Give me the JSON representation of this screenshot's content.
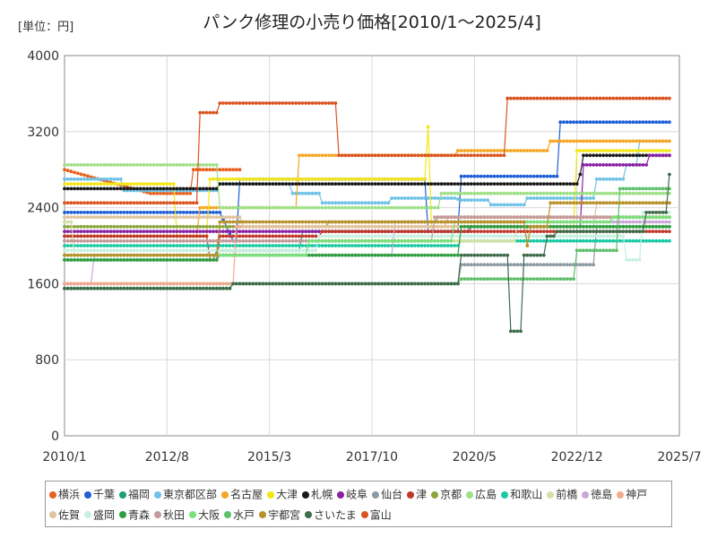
{
  "chart_data": {
    "type": "line",
    "title": "パンク修理の小売り価格[2010/1～2025/4]",
    "unit_label": "[単位：円]",
    "xlim": [
      "2010/1",
      "2025/7"
    ],
    "x_ticks": [
      "2010/1",
      "2012/8",
      "2015/3",
      "2017/10",
      "2020/5",
      "2022/12",
      "2025/7"
    ],
    "ylim": [
      0,
      4000
    ],
    "y_ticks": [
      0,
      800,
      1600,
      2400,
      3200,
      4000
    ],
    "grid": true,
    "legend_position": "bottom",
    "series": [
      {
        "name": "横浜",
        "color": "#e8601c",
        "points": [
          [
            "2010/1",
            2800
          ],
          [
            "2012/3",
            2550
          ],
          [
            "2013/3",
            2550
          ],
          [
            "2013/4",
            2800
          ],
          [
            "2014/6",
            2800
          ]
        ]
      },
      {
        "name": "千葉",
        "color": "#1f5fd6",
        "points": [
          [
            "2010/1",
            2350
          ],
          [
            "2013/11",
            2350
          ],
          [
            "2013/12",
            2350
          ],
          [
            "2014/4",
            2050
          ],
          [
            "2014/5",
            2050
          ],
          [
            "2014/6",
            2700
          ],
          [
            "2019/2",
            2700
          ],
          [
            "2019/3",
            2150
          ],
          [
            "2019/12",
            2150
          ],
          [
            "2020/1",
            2730
          ],
          [
            "2022/6",
            2730
          ],
          [
            "2022/7",
            3300
          ],
          [
            "2025/4",
            3300
          ]
        ]
      },
      {
        "name": "福岡",
        "color": "#1a9e77",
        "points": [
          [
            "2010/1",
            1850
          ],
          [
            "2013/10",
            1850
          ],
          [
            "2013/11",
            1950
          ],
          [
            "2015/12",
            1950
          ],
          [
            "2016/1",
            2150
          ],
          [
            "2020/3",
            2150
          ],
          [
            "2020/4",
            2200
          ],
          [
            "2025/4",
            2200
          ]
        ]
      },
      {
        "name": "東京都区部",
        "color": "#6ec1e6",
        "points": [
          [
            "2010/1",
            2700
          ],
          [
            "2011/6",
            2700
          ],
          [
            "2011/7",
            2580
          ],
          [
            "2013/11",
            2580
          ],
          [
            "2013/12",
            2650
          ],
          [
            "2015/9",
            2650
          ],
          [
            "2015/10",
            2550
          ],
          [
            "2016/6",
            2550
          ],
          [
            "2016/7",
            2450
          ],
          [
            "2018/3",
            2450
          ],
          [
            "2018/4",
            2500
          ],
          [
            "2019/11",
            2500
          ],
          [
            "2020/1",
            2480
          ],
          [
            "2020/9",
            2480
          ],
          [
            "2020/10",
            2430
          ],
          [
            "2021/8",
            2430
          ],
          [
            "2021/9",
            2500
          ],
          [
            "2023/5",
            2500
          ],
          [
            "2023/6",
            2700
          ],
          [
            "2024/2",
            2700
          ],
          [
            "2024/3",
            2850
          ],
          [
            "2024/6",
            2850
          ],
          [
            "2024/7",
            3100
          ],
          [
            "2025/4",
            3100
          ]
        ]
      },
      {
        "name": "名古屋",
        "color": "#f5a623",
        "points": [
          [
            "2010/1",
            2100
          ],
          [
            "2013/5",
            2100
          ],
          [
            "2013/6",
            2400
          ],
          [
            "2015/11",
            2400
          ],
          [
            "2015/12",
            2950
          ],
          [
            "2019/11",
            2950
          ],
          [
            "2019/12",
            3000
          ],
          [
            "2022/3",
            3000
          ],
          [
            "2022/4",
            3100
          ],
          [
            "2025/4",
            3100
          ]
        ]
      },
      {
        "name": "大津",
        "color": "#f3e616",
        "points": [
          [
            "2010/1",
            2650
          ],
          [
            "2012/10",
            2650
          ],
          [
            "2012/11",
            2100
          ],
          [
            "2013/8",
            2100
          ],
          [
            "2013/9",
            2700
          ],
          [
            "2019/2",
            2700
          ],
          [
            "2019/3",
            3250
          ],
          [
            "2019/4",
            2200
          ],
          [
            "2022/11",
            2200
          ],
          [
            "2022/12",
            3000
          ],
          [
            "2025/4",
            3000
          ]
        ]
      },
      {
        "name": "札幌",
        "color": "#1a1a1a",
        "points": [
          [
            "2010/1",
            2600
          ],
          [
            "2012/2",
            2600
          ],
          [
            "2012/3",
            2600
          ],
          [
            "2013/11",
            2600
          ],
          [
            "2013/12",
            2650
          ],
          [
            "2022/12",
            2650
          ],
          [
            "2023/1",
            2750
          ],
          [
            "2023/2",
            2950
          ],
          [
            "2025/4",
            2950
          ]
        ]
      },
      {
        "name": "岐阜",
        "color": "#8b1fa5",
        "points": [
          [
            "2010/1",
            2150
          ],
          [
            "2016/3",
            2150
          ],
          [
            "2016/4",
            2150
          ],
          [
            "2020/3",
            2150
          ],
          [
            "2020/4",
            2200
          ],
          [
            "2023/1",
            2200
          ],
          [
            "2023/2",
            2850
          ],
          [
            "2024/9",
            2850
          ],
          [
            "2024/10",
            2950
          ],
          [
            "2025/4",
            2950
          ]
        ]
      },
      {
        "name": "仙台",
        "color": "#8c9aa3",
        "points": [
          [
            "2010/1",
            1600
          ],
          [
            "2014/3",
            1600
          ],
          [
            "2014/4",
            1600
          ],
          [
            "2019/12",
            1600
          ],
          [
            "2020/1",
            1800
          ],
          [
            "2023/5",
            1800
          ],
          [
            "2023/6",
            2200
          ],
          [
            "2025/4",
            2200
          ]
        ]
      },
      {
        "name": "津",
        "color": "#c0392b",
        "points": [
          [
            "2010/1",
            2100
          ],
          [
            "2013/8",
            2100
          ],
          [
            "2013/9",
            1850
          ],
          [
            "2013/11",
            1850
          ],
          [
            "2013/12",
            2100
          ],
          [
            "2016/6",
            2100
          ],
          [
            "2016/7",
            2150
          ],
          [
            "2025/4",
            2150
          ]
        ]
      },
      {
        "name": "京都",
        "color": "#8aa63d",
        "points": [
          [
            "2010/1",
            2200
          ],
          [
            "2016/8",
            2200
          ],
          [
            "2016/9",
            2250
          ],
          [
            "2019/5",
            2250
          ],
          [
            "2019/6",
            2300
          ],
          [
            "2025/4",
            2300
          ]
        ]
      },
      {
        "name": "広島",
        "color": "#9ee086",
        "points": [
          [
            "2010/1",
            2850
          ],
          [
            "2013/11",
            2850
          ],
          [
            "2013/12",
            2400
          ],
          [
            "2019/6",
            2400
          ],
          [
            "2019/7",
            2550
          ],
          [
            "2025/4",
            2550
          ]
        ]
      },
      {
        "name": "和歌山",
        "color": "#18c9a2",
        "points": [
          [
            "2010/1",
            2000
          ],
          [
            "2014/6",
            2000
          ],
          [
            "2014/7",
            2000
          ],
          [
            "2019/12",
            2000
          ],
          [
            "2020/1",
            2050
          ],
          [
            "2025/4",
            2050
          ]
        ]
      },
      {
        "name": "前橋",
        "color": "#d4e0a6",
        "points": [
          [
            "2010/1",
            2250
          ],
          [
            "2010/3",
            2250
          ],
          [
            "2010/4",
            1900
          ],
          [
            "2016/2",
            1900
          ],
          [
            "2016/3",
            2050
          ],
          [
            "2021/5",
            2050
          ],
          [
            "2021/6",
            2200
          ],
          [
            "2025/4",
            2200
          ]
        ]
      },
      {
        "name": "徳島",
        "color": "#c9a7d6",
        "points": [
          [
            "2010/1",
            1600
          ],
          [
            "2010/9",
            1600
          ],
          [
            "2010/10",
            1900
          ],
          [
            "2018/4",
            1900
          ],
          [
            "2018/5",
            2250
          ],
          [
            "2025/4",
            2250
          ]
        ]
      },
      {
        "name": "神戸",
        "color": "#f2a98c",
        "points": [
          [
            "2010/1",
            1600
          ],
          [
            "2012/12",
            1600
          ],
          [
            "2013/1",
            1600
          ],
          [
            "2014/4",
            1600
          ],
          [
            "2014/5",
            2200
          ],
          [
            "2019/8",
            2200
          ],
          [
            "2019/9",
            2300
          ],
          [
            "2025/4",
            2300
          ]
        ]
      },
      {
        "name": "佐賀",
        "color": "#e0c49e",
        "points": [
          [
            "2010/1",
            2300
          ],
          [
            "2014/6",
            2300
          ],
          [
            "2014/7",
            2200
          ],
          [
            "2023/5",
            2200
          ],
          [
            "2023/6",
            2450
          ],
          [
            "2025/4",
            2450
          ]
        ]
      },
      {
        "name": "盛岡",
        "color": "#c8f0e0",
        "points": [
          [
            "2010/1",
            1950
          ],
          [
            "2016/5",
            1950
          ],
          [
            "2016/6",
            2100
          ],
          [
            "2024/2",
            2100
          ],
          [
            "2024/3",
            1850
          ],
          [
            "2024/7",
            1850
          ],
          [
            "2024/8",
            2350
          ],
          [
            "2025/4",
            2350
          ]
        ]
      },
      {
        "name": "青森",
        "color": "#2e9e3f",
        "points": [
          [
            "2010/1",
            1850
          ],
          [
            "2013/11",
            1850
          ],
          [
            "2013/12",
            1900
          ],
          [
            "2019/12",
            1900
          ],
          [
            "2020/1",
            2200
          ],
          [
            "2025/4",
            2200
          ]
        ]
      },
      {
        "name": "秋田",
        "color": "#c59a9a",
        "points": [
          [
            "2010/1",
            2050
          ],
          [
            "2013/11",
            2050
          ],
          [
            "2013/12",
            2050
          ],
          [
            "2019/4",
            2050
          ],
          [
            "2019/5",
            2300
          ],
          [
            "2025/4",
            2300
          ]
        ]
      },
      {
        "name": "大阪",
        "color": "#7ae07a",
        "points": [
          [
            "2010/1",
            1900
          ],
          [
            "2016/2",
            1900
          ],
          [
            "2016/3",
            2050
          ],
          [
            "2019/10",
            2050
          ],
          [
            "2019/11",
            2250
          ],
          [
            "2023/10",
            2250
          ],
          [
            "2023/11",
            2300
          ],
          [
            "2025/4",
            2300
          ]
        ]
      },
      {
        "name": "水戸",
        "color": "#5cbf6a",
        "points": [
          [
            "2010/1",
            1550
          ],
          [
            "2014/3",
            1550
          ],
          [
            "2014/4",
            1600
          ],
          [
            "2019/12",
            1600
          ],
          [
            "2020/1",
            1650
          ],
          [
            "2022/11",
            1650
          ],
          [
            "2022/12",
            1950
          ],
          [
            "2023/12",
            1950
          ],
          [
            "2024/1",
            2600
          ],
          [
            "2025/4",
            2600
          ]
        ]
      },
      {
        "name": "宇都宮",
        "color": "#b8912a",
        "points": [
          [
            "2010/1",
            1900
          ],
          [
            "2013/11",
            1900
          ],
          [
            "2013/12",
            2250
          ],
          [
            "2021/8",
            2250
          ],
          [
            "2021/9",
            2000
          ],
          [
            "2021/10",
            2200
          ],
          [
            "2022/3",
            2200
          ],
          [
            "2022/4",
            2450
          ],
          [
            "2025/4",
            2450
          ]
        ]
      },
      {
        "name": "さいたま",
        "color": "#3e6b4a",
        "points": [
          [
            "2010/1",
            1550
          ],
          [
            "2014/3",
            1550
          ],
          [
            "2014/4",
            1600
          ],
          [
            "2019/12",
            1600
          ],
          [
            "2020/1",
            1900
          ],
          [
            "2021/3",
            1900
          ],
          [
            "2021/4",
            1100
          ],
          [
            "2021/7",
            1100
          ],
          [
            "2021/8",
            1900
          ],
          [
            "2022/2",
            1900
          ],
          [
            "2022/3",
            2100
          ],
          [
            "2022/5",
            2100
          ],
          [
            "2022/6",
            2150
          ],
          [
            "2024/8",
            2150
          ],
          [
            "2024/9",
            2350
          ],
          [
            "2025/3",
            2350
          ],
          [
            "2025/4",
            2750
          ]
        ]
      },
      {
        "name": "富山",
        "color": "#d9531e",
        "points": [
          [
            "2010/1",
            2450
          ],
          [
            "2013/5",
            2450
          ],
          [
            "2013/6",
            3400
          ],
          [
            "2013/11",
            3400
          ],
          [
            "2013/12",
            3500
          ],
          [
            "2016/11",
            3500
          ],
          [
            "2016/12",
            2950
          ],
          [
            "2021/2",
            2950
          ],
          [
            "2021/3",
            3550
          ],
          [
            "2025/4",
            3550
          ]
        ]
      }
    ]
  }
}
